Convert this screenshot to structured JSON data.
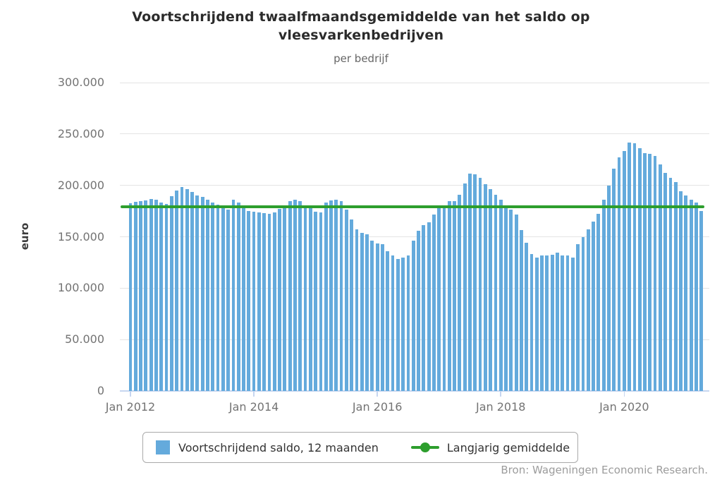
{
  "header": {
    "title_line1": "Voortschrijdend twaalfmaandsgemiddelde van het saldo op",
    "title_line2": "vleesvarkenbedrijven",
    "subtitle": "per bedrijf"
  },
  "source": "Bron: Wageningen Economic Research.",
  "colors": {
    "bar": "#64aadc",
    "line": "#2d9e2d",
    "grid": "#e4e4e4",
    "axis": "#c7d6f0",
    "title_text": "#2b2b2b",
    "muted_text": "#737373",
    "source_text": "#9c9c9c",
    "legend_border": "#aaaaaa",
    "legend_text": "#333333"
  },
  "y_axis": {
    "label": "euro",
    "ticks": [
      {
        "value": 0,
        "label": "0"
      },
      {
        "value": 50000,
        "label": "50.000"
      },
      {
        "value": 100000,
        "label": "100.000"
      },
      {
        "value": 150000,
        "label": "150.000"
      },
      {
        "value": 200000,
        "label": "200.000"
      },
      {
        "value": 250000,
        "label": "250.000"
      },
      {
        "value": 300000,
        "label": "300.000"
      }
    ]
  },
  "x_axis": {
    "ticks": [
      {
        "label": "Jan 2012",
        "month_index": 0
      },
      {
        "label": "Jan 2014",
        "month_index": 24
      },
      {
        "label": "Jan 2016",
        "month_index": 48
      },
      {
        "label": "Jan 2018",
        "month_index": 72
      },
      {
        "label": "Jan 2020",
        "month_index": 96
      }
    ]
  },
  "legend": {
    "items": [
      {
        "label": "Voortschrijdend saldo, 12 maanden",
        "marker": "square"
      },
      {
        "label": "Langjarig gemiddelde",
        "marker": "line-dot"
      }
    ]
  },
  "chart_data": {
    "type": "bar",
    "title": "Voortschrijdend twaalfmaandsgemiddelde van het saldo op vleesvarkenbedrijven",
    "subtitle": "per bedrijf",
    "xlabel": "",
    "ylabel": "euro",
    "ylim": [
      0,
      300000
    ],
    "grid": "horizontal",
    "legend_position": "bottom",
    "x": [
      "2012-01",
      "2012-02",
      "2012-03",
      "2012-04",
      "2012-05",
      "2012-06",
      "2012-07",
      "2012-08",
      "2012-09",
      "2012-10",
      "2012-11",
      "2012-12",
      "2013-01",
      "2013-02",
      "2013-03",
      "2013-04",
      "2013-05",
      "2013-06",
      "2013-07",
      "2013-08",
      "2013-09",
      "2013-10",
      "2013-11",
      "2013-12",
      "2014-01",
      "2014-02",
      "2014-03",
      "2014-04",
      "2014-05",
      "2014-06",
      "2014-07",
      "2014-08",
      "2014-09",
      "2014-10",
      "2014-11",
      "2014-12",
      "2015-01",
      "2015-02",
      "2015-03",
      "2015-04",
      "2015-05",
      "2015-06",
      "2015-07",
      "2015-08",
      "2015-09",
      "2015-10",
      "2015-11",
      "2015-12",
      "2016-01",
      "2016-02",
      "2016-03",
      "2016-04",
      "2016-05",
      "2016-06",
      "2016-07",
      "2016-08",
      "2016-09",
      "2016-10",
      "2016-11",
      "2016-12",
      "2017-01",
      "2017-02",
      "2017-03",
      "2017-04",
      "2017-05",
      "2017-06",
      "2017-07",
      "2017-08",
      "2017-09",
      "2017-10",
      "2017-11",
      "2017-12",
      "2018-01",
      "2018-02",
      "2018-03",
      "2018-04",
      "2018-05",
      "2018-06",
      "2018-07",
      "2018-08",
      "2018-09",
      "2018-10",
      "2018-11",
      "2018-12",
      "2019-01",
      "2019-02",
      "2019-03",
      "2019-04",
      "2019-05",
      "2019-06",
      "2019-07",
      "2019-08",
      "2019-09",
      "2019-10",
      "2019-11",
      "2019-12",
      "2020-01",
      "2020-02",
      "2020-03",
      "2020-04",
      "2020-05",
      "2020-06",
      "2020-07",
      "2020-08",
      "2020-09",
      "2020-10",
      "2020-11",
      "2020-12",
      "2021-01",
      "2021-02",
      "2021-03",
      "2021-04"
    ],
    "series": [
      {
        "name": "Voortschrijdend saldo, 12 maanden",
        "type": "bar",
        "color": "#64aadc",
        "values": [
          182500,
          184000,
          184500,
          185500,
          186500,
          186000,
          183500,
          182000,
          189500,
          195000,
          198500,
          196500,
          193500,
          190500,
          188500,
          186000,
          183500,
          181000,
          179000,
          176500,
          186000,
          183000,
          177500,
          175000,
          174500,
          174000,
          173000,
          172500,
          173500,
          177000,
          178500,
          185000,
          186000,
          185000,
          179000,
          178000,
          174500,
          173500,
          183000,
          185500,
          186000,
          184500,
          176500,
          166500,
          157000,
          153500,
          152500,
          146500,
          143500,
          142500,
          136000,
          132000,
          128500,
          130000,
          132000,
          146000,
          156000,
          161000,
          164000,
          171500,
          177500,
          180500,
          184500,
          184500,
          191000,
          202000,
          211500,
          210500,
          207500,
          201000,
          196500,
          191000,
          186000,
          178000,
          176500,
          171500,
          156500,
          144500,
          133000,
          130000,
          131500,
          132000,
          132500,
          134500,
          132000,
          132000,
          130000,
          142500,
          149500,
          157000,
          165000,
          172500,
          186000,
          199500,
          216500,
          227500,
          233500,
          241500,
          241000,
          236000,
          231500,
          231000,
          228500,
          220500,
          212000,
          207500,
          203000,
          194500,
          190500,
          186000,
          183000,
          175000
        ]
      },
      {
        "name": "Langjarig gemiddelde",
        "type": "line",
        "color": "#2d9e2d",
        "value": 179000
      }
    ]
  }
}
